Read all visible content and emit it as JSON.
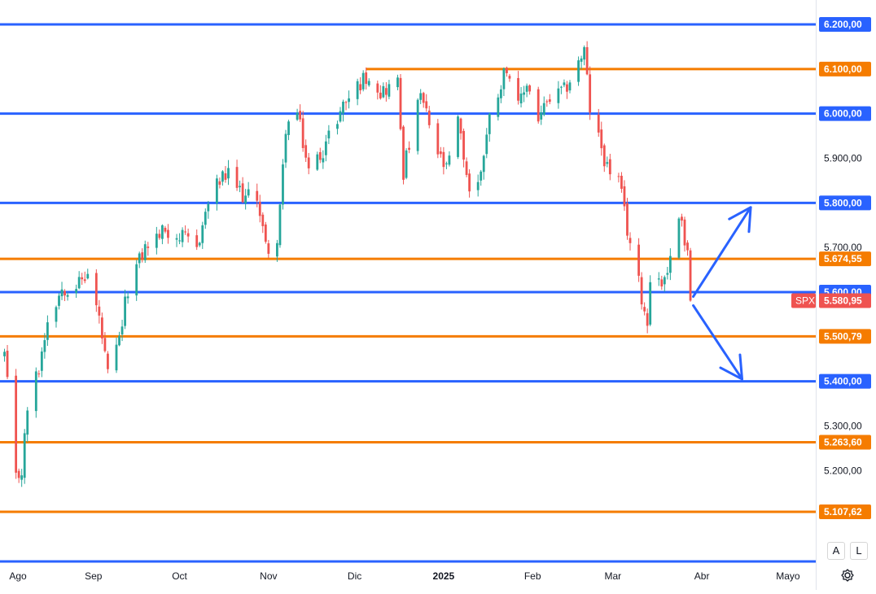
{
  "chart_data": {
    "type": "candlestick",
    "symbol": "SPX",
    "last_price": "5.580,95",
    "x_tick_labels": [
      "Ago",
      "Sep",
      "Oct",
      "Nov",
      "Dic",
      "2025",
      "Feb",
      "Mar",
      "Abr",
      "Mayo"
    ],
    "y_tick_labels": [
      "5.700,00",
      "5.600,00",
      "5.300,00",
      "5.200,00",
      "5.900,00"
    ],
    "ylim": [
      5040,
      6230
    ],
    "x_domain": [
      "2024-07-31",
      "2025-05-05"
    ],
    "support_resistance_lines": [
      {
        "value": 6200,
        "label": "6.200,00",
        "color": "#2962ff"
      },
      {
        "value": 6100,
        "label": "6.100,00",
        "color": "#f57c00",
        "from": "2024-12-05"
      },
      {
        "value": 6000,
        "label": "6.000,00",
        "color": "#2962ff"
      },
      {
        "value": 5800,
        "label": "5.800,00",
        "color": "#2962ff"
      },
      {
        "value": 5674.55,
        "label": "5.674,55",
        "color": "#f57c00"
      },
      {
        "value": 5600,
        "label": "5.600,00",
        "color": "#2962ff"
      },
      {
        "value": 5500.79,
        "label": "5.500,79",
        "color": "#f57c00"
      },
      {
        "value": 5400,
        "label": "5.400,00",
        "color": "#2962ff"
      },
      {
        "value": 5263.6,
        "label": "5.263,60",
        "color": "#f57c00"
      },
      {
        "value": 5107.62,
        "label": "5.107,62",
        "color": "#f57c00"
      }
    ],
    "anchors": [
      [
        "2024-08-01",
        5460
      ],
      [
        "2024-08-02",
        5390
      ],
      [
        "2024-08-05",
        5180
      ],
      [
        "2024-08-07",
        5200
      ],
      [
        "2024-08-09",
        5340
      ],
      [
        "2024-08-13",
        5430
      ],
      [
        "2024-08-16",
        5540
      ],
      [
        "2024-08-21",
        5610
      ],
      [
        "2024-08-27",
        5620
      ],
      [
        "2024-08-30",
        5640
      ],
      [
        "2024-09-03",
        5540
      ],
      [
        "2024-09-06",
        5410
      ],
      [
        "2024-09-10",
        5490
      ],
      [
        "2024-09-13",
        5610
      ],
      [
        "2024-09-19",
        5700
      ],
      [
        "2024-09-26",
        5740
      ],
      [
        "2024-10-02",
        5720
      ],
      [
        "2024-10-07",
        5700
      ],
      [
        "2024-10-11",
        5800
      ],
      [
        "2024-10-15",
        5850
      ],
      [
        "2024-10-18",
        5860
      ],
      [
        "2024-10-24",
        5810
      ],
      [
        "2024-10-28",
        5820
      ],
      [
        "2024-10-31",
        5700
      ],
      [
        "2024-11-04",
        5710
      ],
      [
        "2024-11-05",
        5780
      ],
      [
        "2024-11-07",
        5970
      ],
      [
        "2024-11-11",
        6000
      ],
      [
        "2024-11-15",
        5870
      ],
      [
        "2024-11-20",
        5920
      ],
      [
        "2024-11-27",
        6020
      ],
      [
        "2024-12-03",
        6070
      ],
      [
        "2024-12-06",
        6090
      ],
      [
        "2024-12-10",
        6050
      ],
      [
        "2024-12-16",
        6070
      ],
      [
        "2024-12-18",
        5870
      ],
      [
        "2024-12-20",
        5930
      ],
      [
        "2024-12-24",
        6040
      ],
      [
        "2024-12-30",
        5910
      ],
      [
        "2025-01-02",
        5870
      ],
      [
        "2025-01-06",
        5980
      ],
      [
        "2025-01-10",
        5830
      ],
      [
        "2025-01-13",
        5840
      ],
      [
        "2025-01-17",
        5990
      ],
      [
        "2025-01-23",
        6110
      ],
      [
        "2025-01-27",
        6010
      ],
      [
        "2025-01-30",
        6070
      ],
      [
        "2025-02-03",
        5990
      ],
      [
        "2025-02-07",
        6030
      ],
      [
        "2025-02-12",
        6050
      ],
      [
        "2025-02-19",
        6140
      ],
      [
        "2025-02-21",
        6010
      ],
      [
        "2025-02-27",
        5880
      ],
      [
        "2025-03-03",
        5850
      ],
      [
        "2025-03-06",
        5740
      ],
      [
        "2025-03-10",
        5620
      ],
      [
        "2025-03-13",
        5530
      ],
      [
        "2025-03-14",
        5640
      ],
      [
        "2025-03-18",
        5620
      ],
      [
        "2025-03-21",
        5670
      ],
      [
        "2025-03-24",
        5770
      ],
      [
        "2025-03-25",
        5775
      ],
      [
        "2025-03-26",
        5710
      ],
      [
        "2025-03-27",
        5690
      ],
      [
        "2025-03-28",
        5580.95
      ]
    ],
    "arrows": [
      {
        "direction": "up",
        "from": [
          "2025-03-29",
          5590
        ],
        "to": [
          "2025-04-18",
          5790
        ]
      },
      {
        "direction": "down",
        "from": [
          "2025-03-29",
          5570
        ],
        "to": [
          "2025-04-15",
          5405
        ]
      }
    ],
    "colors": {
      "up": "#26a69a",
      "down": "#ef5350",
      "blue_line": "#2962ff",
      "orange_line": "#f57c00"
    }
  },
  "axis_buttons": {
    "auto": "A",
    "log": "L"
  }
}
